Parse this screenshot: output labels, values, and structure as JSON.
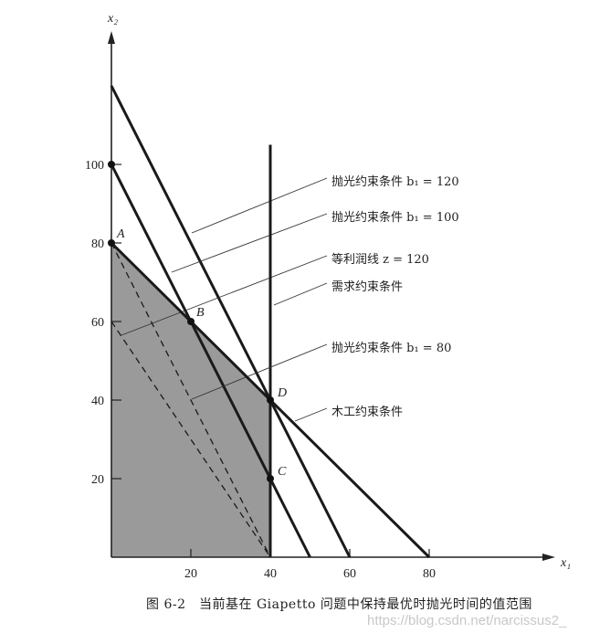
{
  "chart_data": {
    "type": "line",
    "title": "",
    "xlabel": "x₁",
    "ylabel": "x₂",
    "xlim": [
      0,
      90
    ],
    "ylim": [
      0,
      125
    ],
    "xticks": [
      20,
      40,
      60,
      80
    ],
    "yticks": [
      20,
      40,
      60,
      80,
      100
    ],
    "grid": false,
    "feasible_region": {
      "vertices": [
        [
          0,
          0
        ],
        [
          0,
          80
        ],
        [
          20,
          60
        ],
        [
          40,
          40
        ],
        [
          40,
          0
        ]
      ],
      "color": "#9a9a9a"
    },
    "series": [
      {
        "name": "抛光约束条件 b₁ = 120",
        "style": "solid",
        "points": [
          [
            0,
            120
          ],
          [
            60,
            0
          ]
        ]
      },
      {
        "name": "抛光约束条件 b₁ = 100",
        "style": "solid",
        "points": [
          [
            0,
            100
          ],
          [
            50,
            0
          ]
        ]
      },
      {
        "name": "等利润线 z = 120",
        "style": "dashed",
        "points": [
          [
            0,
            60
          ],
          [
            40,
            0
          ]
        ]
      },
      {
        "name": "需求约束条件",
        "style": "solid",
        "points": [
          [
            40,
            0
          ],
          [
            40,
            105
          ]
        ]
      },
      {
        "name": "抛光约束条件 b₁ = 80",
        "style": "dashed",
        "points": [
          [
            0,
            80
          ],
          [
            40,
            0
          ]
        ]
      },
      {
        "name": "木工约束条件",
        "style": "solid",
        "points": [
          [
            0,
            80
          ],
          [
            80,
            0
          ]
        ]
      }
    ],
    "annotations": [
      {
        "label": "A",
        "x": 0,
        "y": 80
      },
      {
        "label": "B",
        "x": 20,
        "y": 60
      },
      {
        "label": "C",
        "x": 40,
        "y": 20
      },
      {
        "label": "D",
        "x": 40,
        "y": 40
      }
    ],
    "marked_points": [
      [
        0,
        100
      ],
      [
        0,
        80
      ],
      [
        20,
        60
      ],
      [
        40,
        40
      ],
      [
        40,
        20
      ]
    ]
  },
  "caption": "图 6-2　当前基在 Giapetto 问题中保持最优时抛光时间的值范围",
  "watermark": "https://blog.csdn.net/narcissus2_"
}
